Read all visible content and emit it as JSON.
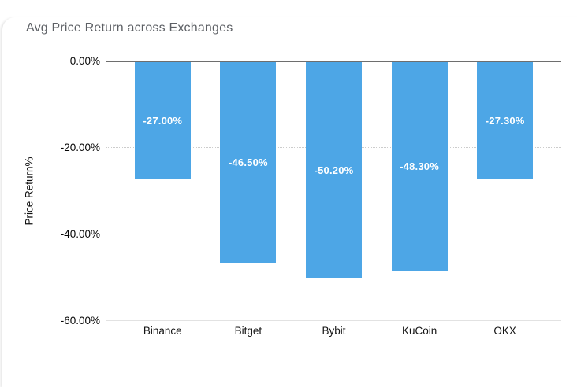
{
  "chart_data": {
    "type": "bar",
    "title": "Avg Price Return across Exchanges",
    "xlabel": "",
    "ylabel": "Price Return%",
    "categories": [
      "Binance",
      "Bitget",
      "Bybit",
      "KuCoin",
      "OKX"
    ],
    "values": [
      -27.0,
      -46.5,
      -50.2,
      -48.3,
      -27.3
    ],
    "bar_labels": [
      "-27.00%",
      "-46.50%",
      "-50.20%",
      "-48.30%",
      "-27.30%"
    ],
    "ylim": [
      -60,
      0
    ],
    "yticks": [
      {
        "value": 0,
        "label": "0.00%"
      },
      {
        "value": -20,
        "label": "-20.00%"
      },
      {
        "value": -40,
        "label": "-40.00%"
      },
      {
        "value": -60,
        "label": "-60.00%"
      }
    ],
    "grid": "horizontal-only",
    "legend": "none",
    "bar_color": "#4da6e6",
    "bar_label_color": "#ffffff",
    "title_color": "#5d6065",
    "zero_axis_color": "#6e6e6e",
    "gridline_color": "#cccccc",
    "baseline_color": "#e2e2e2"
  }
}
